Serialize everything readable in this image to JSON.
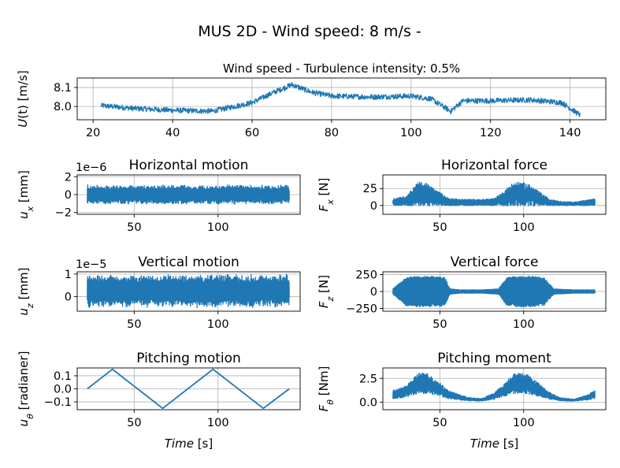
{
  "figure": {
    "suptitle": "MUS 2D - Wind speed: 8 m/s -",
    "line_color": "#1f77b4"
  },
  "chart_data": [
    {
      "id": "wind",
      "type": "line",
      "title": "Wind speed - Turbulence intensity: 0.5%",
      "ylabel": {
        "sym": "U",
        "sub": "",
        "rest": "(t) [m/s]"
      },
      "xlabel": null,
      "xlim": [
        16,
        149
      ],
      "ylim": [
        7.93,
        8.15
      ],
      "xticks": [
        20,
        40,
        60,
        80,
        100,
        120,
        140
      ],
      "yticks": [
        8.0,
        8.1
      ],
      "ytick_labels": [
        "8.0",
        "8.1"
      ],
      "x_range": [
        22,
        142.5
      ],
      "grid": true,
      "series": [
        {
          "x": [
            22,
            30,
            40,
            50,
            60,
            65,
            70,
            75,
            80,
            90,
            100,
            105,
            110,
            113,
            120,
            130,
            138,
            142.5
          ],
          "y": [
            8.005,
            7.99,
            7.98,
            7.975,
            8.02,
            8.07,
            8.115,
            8.075,
            8.055,
            8.05,
            8.055,
            8.04,
            7.975,
            8.03,
            8.03,
            8.035,
            8.02,
            7.955
          ]
        }
      ]
    },
    {
      "id": "ux",
      "type": "line",
      "title": "Horizontal motion",
      "offset_text": "1e−6",
      "ylabel": {
        "sym": "u",
        "sub": "x",
        "rest": " [mm]"
      },
      "xlim": [
        16,
        149
      ],
      "ylim": [
        -2.2,
        2.2
      ],
      "xticks": [
        50,
        100
      ],
      "yticks": [
        -2,
        0,
        2
      ],
      "ytick_labels": [
        "−2",
        "0",
        "2"
      ],
      "x_range": [
        22,
        142.5
      ],
      "grid": true,
      "series": [
        {
          "x": [
            22,
            142.5
          ],
          "y": [
            -1.1,
            1.1
          ]
        }
      ]
    },
    {
      "id": "fx",
      "type": "line",
      "title": "Horizontal force",
      "ylabel": {
        "sym": "F",
        "sub": "x",
        "rest": " [N]"
      },
      "xlim": [
        16,
        149
      ],
      "ylim": [
        -13,
        45
      ],
      "xticks": [
        50,
        100
      ],
      "yticks": [
        0,
        25
      ],
      "ytick_labels": [
        "0",
        "25"
      ],
      "x_range": [
        22,
        142.5
      ],
      "grid": true,
      "series": [
        {
          "x": [
            22,
            30,
            37,
            42,
            48,
            55,
            62,
            68,
            75,
            82,
            88,
            93,
            97,
            102,
            108,
            115,
            122,
            130,
            138,
            142.5
          ],
          "y": [
            5,
            7,
            17,
            16,
            11,
            5.5,
            4.5,
            4.5,
            4.5,
            5,
            10,
            16,
            17,
            16,
            11,
            5,
            3,
            2.5,
            4,
            5
          ]
        }
      ]
    },
    {
      "id": "uz",
      "type": "line",
      "title": "Vertical motion",
      "offset_text": "1e−5",
      "ylabel": {
        "sym": "u",
        "sub": "z",
        "rest": " [mm]"
      },
      "xlim": [
        16,
        149
      ],
      "ylim": [
        -0.65,
        1.1
      ],
      "xticks": [
        50,
        100
      ],
      "yticks": [
        0,
        1
      ],
      "ytick_labels": [
        "0",
        "1"
      ],
      "x_range": [
        22,
        142.5
      ],
      "grid": true,
      "series": [
        {
          "x": [
            22,
            142.5
          ],
          "y": [
            -0.5,
            1.0
          ]
        }
      ]
    },
    {
      "id": "fz",
      "type": "line",
      "title": "Vertical force",
      "ylabel": {
        "sym": "F",
        "sub": "z",
        "rest": " [N]"
      },
      "xlim": [
        16,
        149
      ],
      "ylim": [
        -290,
        290
      ],
      "xticks": [
        50,
        100
      ],
      "yticks": [
        -250,
        0,
        250
      ],
      "ytick_labels": [
        "−250",
        "0",
        "250"
      ],
      "x_range": [
        22,
        142.5
      ],
      "grid": true,
      "series": [
        {
          "x": [
            22,
            30,
            37,
            42,
            48,
            55,
            62,
            68,
            75,
            82,
            88,
            93,
            97,
            102,
            108,
            115,
            122,
            130,
            138,
            142.5
          ],
          "y": [
            0,
            0,
            0,
            0,
            0,
            0,
            0,
            0,
            0,
            0,
            0,
            0,
            0,
            0,
            0,
            0,
            0,
            0,
            0,
            0
          ]
        }
      ]
    },
    {
      "id": "utheta",
      "type": "line",
      "title": "Pitching motion",
      "ylabel": {
        "sym": "u",
        "sub": "θ",
        "rest": " [radianer]"
      },
      "xlabel": {
        "sym": "Time",
        "rest": " [s]"
      },
      "xlim": [
        16,
        149
      ],
      "ylim": [
        -0.16,
        0.16
      ],
      "xticks": [
        50,
        100
      ],
      "yticks": [
        -0.1,
        0.0,
        0.1
      ],
      "ytick_labels": [
        "−0.1",
        "0.0",
        "0.1"
      ],
      "grid": true,
      "series": [
        {
          "x": [
            22,
            37,
            67,
            97,
            127,
            142.5
          ],
          "y": [
            0.0,
            0.15,
            -0.15,
            0.15,
            -0.15,
            0.0
          ]
        }
      ]
    },
    {
      "id": "ftheta",
      "type": "line",
      "title": "Pitching moment",
      "ylabel": {
        "sym": "F",
        "sub": "θ",
        "rest": " [Nm]"
      },
      "xlabel": {
        "sym": "Time",
        "rest": " [s]"
      },
      "xlim": [
        16,
        149
      ],
      "ylim": [
        -0.8,
        3.6
      ],
      "xticks": [
        50,
        100
      ],
      "yticks": [
        0.0,
        2.5
      ],
      "ytick_labels": [
        "0.0",
        "2.5"
      ],
      "x_range": [
        22,
        142.5
      ],
      "grid": true,
      "series": [
        {
          "x": [
            22,
            30,
            37,
            42,
            48,
            55,
            62,
            68,
            75,
            82,
            88,
            93,
            97,
            102,
            108,
            115,
            122,
            130,
            138,
            142.5
          ],
          "y": [
            0.8,
            1.1,
            2.0,
            2.0,
            1.5,
            0.8,
            0.5,
            0.3,
            0.25,
            0.6,
            1.2,
            1.9,
            2.0,
            1.9,
            1.4,
            0.7,
            0.3,
            0.2,
            0.5,
            0.8
          ]
        }
      ]
    }
  ]
}
